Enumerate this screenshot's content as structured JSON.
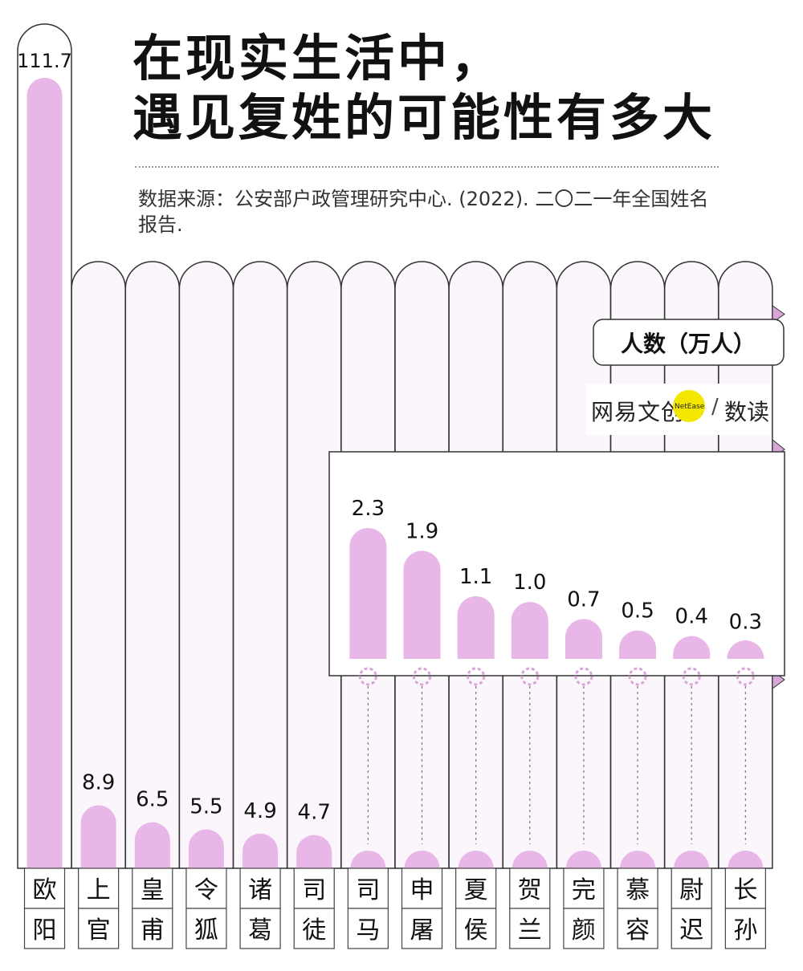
{
  "header": {
    "title_line1": "在现实生活中，",
    "title_line2": "遇见复姓的可能性有多大",
    "source": "数据来源：公安部户政管理研究中心. (2022). 二〇二一年全国姓名报告."
  },
  "legend": {
    "unit_label": "人数（万人）"
  },
  "brand": {
    "name": "网易文创",
    "badge": "NetEase",
    "slash": "/",
    "section": "数读"
  },
  "colors": {
    "bar": "#e8b7e7",
    "tube": "#fbf6fb",
    "outline": "#333333",
    "accent": "#d9a6d9"
  },
  "chart_data": {
    "type": "bar",
    "title": "在现实生活中，遇见复姓的可能性有多大",
    "ylabel": "人数（万人）",
    "categories": [
      "欧阳",
      "上官",
      "皇甫",
      "令狐",
      "诸葛",
      "司徒",
      "司马",
      "申屠",
      "夏侯",
      "贺兰",
      "完颜",
      "慕容",
      "尉迟",
      "长孙"
    ],
    "values": [
      111.7,
      8.9,
      6.5,
      5.5,
      4.9,
      4.7,
      2.3,
      1.9,
      1.1,
      1.0,
      0.7,
      0.5,
      0.4,
      0.3
    ],
    "labels": [
      "111.7",
      "8.9",
      "6.5",
      "5.5",
      "4.9",
      "4.7",
      "2.3",
      "1.9",
      "1.1",
      "1.0",
      "0.7",
      "0.5",
      "0.4",
      "0.3"
    ],
    "inset": {
      "categories": [
        "司马",
        "申屠",
        "夏侯",
        "贺兰",
        "完颜",
        "慕容",
        "尉迟",
        "长孙"
      ],
      "values": [
        2.3,
        1.9,
        1.1,
        1.0,
        0.7,
        0.5,
        0.4,
        0.3
      ],
      "labels": [
        "2.3",
        "1.9",
        "1.1",
        "1.0",
        "0.7",
        "0.5",
        "0.4",
        "0.3"
      ]
    }
  }
}
